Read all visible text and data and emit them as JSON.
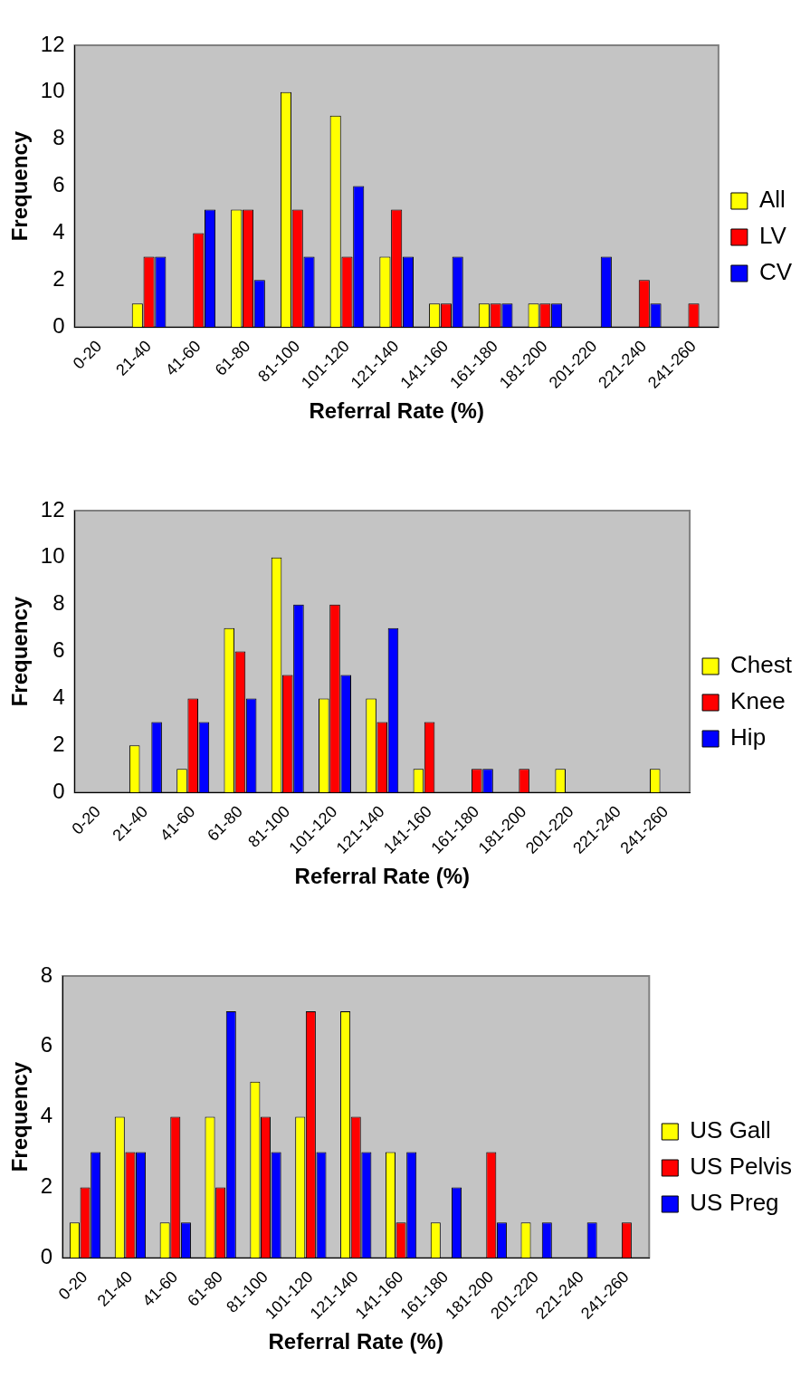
{
  "chart_data": [
    {
      "type": "bar",
      "xlabel": "Referral Rate (%)",
      "ylabel": "Frequency",
      "categories": [
        "0-20",
        "21-40",
        "41-60",
        "61-80",
        "81-100",
        "101-120",
        "121-140",
        "141-160",
        "161-180",
        "181-200",
        "201-220",
        "221-240",
        "241-260"
      ],
      "series": [
        {
          "name": "All",
          "color": "#ffff00",
          "values": [
            0,
            1,
            0,
            5,
            10,
            9,
            3,
            1,
            1,
            1,
            0,
            0,
            0
          ]
        },
        {
          "name": "LV",
          "color": "#ff0000",
          "values": [
            0,
            3,
            4,
            5,
            5,
            3,
            5,
            1,
            1,
            1,
            0,
            2,
            1
          ]
        },
        {
          "name": "CV",
          "color": "#0000ff",
          "values": [
            0,
            3,
            5,
            2,
            3,
            6,
            3,
            3,
            1,
            1,
            3,
            1,
            0
          ]
        }
      ],
      "ylim": [
        0,
        12
      ],
      "yticks": [
        0,
        2,
        4,
        6,
        8,
        10,
        12
      ],
      "grid": false,
      "legend": "right"
    },
    {
      "type": "bar",
      "xlabel": "Referral Rate (%)",
      "ylabel": "Frequency",
      "categories": [
        "0-20",
        "21-40",
        "41-60",
        "61-80",
        "81-100",
        "101-120",
        "121-140",
        "141-160",
        "161-180",
        "181-200",
        "201-220",
        "221-240",
        "241-260"
      ],
      "series": [
        {
          "name": "Chest",
          "color": "#ffff00",
          "values": [
            0,
            2,
            1,
            7,
            10,
            4,
            4,
            1,
            0,
            0,
            1,
            0,
            1
          ]
        },
        {
          "name": "Knee",
          "color": "#ff0000",
          "values": [
            0,
            0,
            4,
            6,
            5,
            8,
            3,
            3,
            1,
            1,
            0,
            0,
            0
          ]
        },
        {
          "name": "Hip",
          "color": "#0000ff",
          "values": [
            0,
            3,
            3,
            4,
            8,
            5,
            7,
            0,
            1,
            0,
            0,
            0,
            0
          ]
        }
      ],
      "ylim": [
        0,
        12
      ],
      "yticks": [
        0,
        2,
        4,
        6,
        8,
        10,
        12
      ],
      "grid": false,
      "legend": "right"
    },
    {
      "type": "bar",
      "xlabel": "Referral Rate (%)",
      "ylabel": "Frequency",
      "categories": [
        "0-20",
        "21-40",
        "41-60",
        "61-80",
        "81-100",
        "101-120",
        "121-140",
        "141-160",
        "161-180",
        "181-200",
        "201-220",
        "221-240",
        "241-260"
      ],
      "series": [
        {
          "name": "US Gall",
          "color": "#ffff00",
          "values": [
            1,
            4,
            1,
            4,
            5,
            4,
            7,
            3,
            1,
            0,
            1,
            0,
            0
          ]
        },
        {
          "name": "US Pelvis",
          "color": "#ff0000",
          "values": [
            2,
            3,
            4,
            2,
            4,
            7,
            4,
            1,
            0,
            3,
            0,
            0,
            1
          ]
        },
        {
          "name": "US Preg",
          "color": "#0000ff",
          "values": [
            3,
            3,
            1,
            7,
            3,
            3,
            3,
            3,
            2,
            1,
            1,
            1,
            0
          ]
        }
      ],
      "ylim": [
        0,
        8
      ],
      "yticks": [
        0,
        2,
        4,
        6,
        8
      ],
      "grid": false,
      "legend": "right"
    }
  ]
}
